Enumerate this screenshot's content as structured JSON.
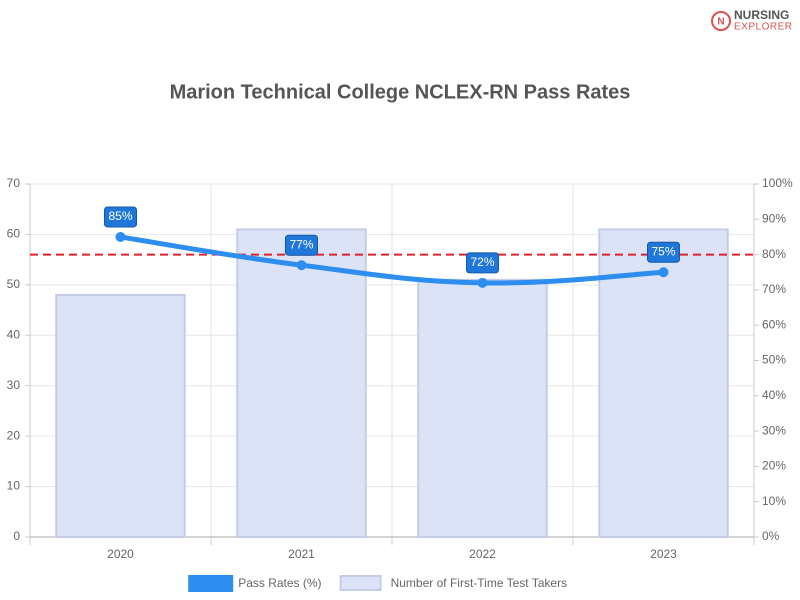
{
  "logo": {
    "line1": "NURSING",
    "line2": "EXPLORER"
  },
  "chart_data": {
    "type": "bar",
    "title": "Marion Technical College NCLEX-RN Pass Rates",
    "categories": [
      "2020",
      "2021",
      "2022",
      "2023"
    ],
    "series": [
      {
        "name": "Pass Rates (%)",
        "type": "line",
        "axis": "y2",
        "color": "#2e8ef0",
        "values": [
          85,
          77,
          72,
          75
        ],
        "value_labels": [
          "85%",
          "77%",
          "72%",
          "75%"
        ]
      },
      {
        "name": "Number of First-Time Test Takers",
        "type": "bar",
        "color": "#dce3f7",
        "values": [
          48,
          61,
          51,
          61
        ]
      }
    ],
    "ylim": [
      0,
      70
    ],
    "yticks": [
      0,
      10,
      20,
      30,
      40,
      50,
      60,
      70
    ],
    "y2lim": [
      0,
      100
    ],
    "y2ticks": [
      {
        "value": 0,
        "label": "0%"
      },
      {
        "value": 10,
        "label": "10%"
      },
      {
        "value": 20,
        "label": "20%"
      },
      {
        "value": 30,
        "label": "30%"
      },
      {
        "value": 40,
        "label": "40%"
      },
      {
        "value": 50,
        "label": "50%"
      },
      {
        "value": 60,
        "label": "60%"
      },
      {
        "value": 70,
        "label": "70%"
      },
      {
        "value": 80,
        "label": "80%"
      },
      {
        "value": 90,
        "label": "90%"
      },
      {
        "value": 100,
        "label": "100%"
      }
    ],
    "reference_line": {
      "axis": "y2",
      "value": 80,
      "color": "#e0212b"
    },
    "grid": true,
    "legend": "bottom"
  }
}
